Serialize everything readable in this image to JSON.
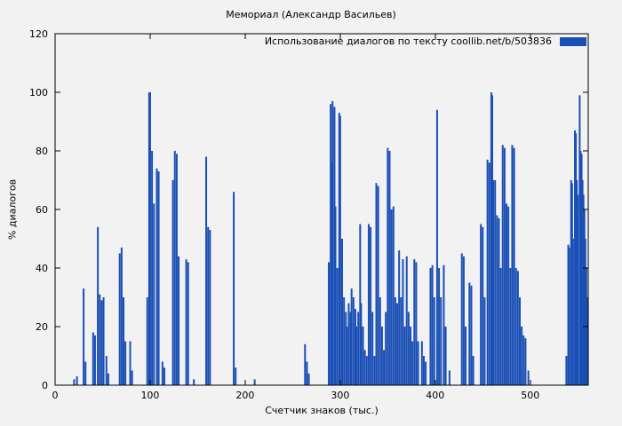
{
  "figure": {
    "background": "#f2f2f2"
  },
  "chart_data": {
    "type": "bar",
    "title": "Мемориал (Александр Васильев)",
    "xlabel": "Счетчик знаков (тыс.)",
    "ylabel": "% диалогов",
    "xlim": [
      0,
      561
    ],
    "ylim": [
      0,
      120
    ],
    "x_ticks": [
      0,
      100,
      200,
      300,
      400,
      500
    ],
    "y_ticks": [
      0,
      20,
      40,
      60,
      80,
      100,
      120
    ],
    "grid": false,
    "legend": {
      "label": "Использование диалогов по тексту  coollib.net/b/503836",
      "position": "top-right"
    },
    "bar_color": "#1a4fb5",
    "points": [
      [
        20,
        2
      ],
      [
        23,
        3
      ],
      [
        30,
        33
      ],
      [
        32,
        8
      ],
      [
        40,
        18
      ],
      [
        42,
        17
      ],
      [
        45,
        54
      ],
      [
        47,
        31
      ],
      [
        49,
        29
      ],
      [
        51,
        30
      ],
      [
        54,
        10
      ],
      [
        56,
        4
      ],
      [
        68,
        45
      ],
      [
        70,
        47
      ],
      [
        72,
        30
      ],
      [
        74,
        15
      ],
      [
        79,
        15
      ],
      [
        81,
        5
      ],
      [
        97,
        30
      ],
      [
        99,
        100
      ],
      [
        100,
        100
      ],
      [
        102,
        80
      ],
      [
        104,
        62
      ],
      [
        107,
        74
      ],
      [
        109,
        73
      ],
      [
        113,
        8
      ],
      [
        115,
        6
      ],
      [
        124,
        70
      ],
      [
        126,
        80
      ],
      [
        128,
        79
      ],
      [
        130,
        44
      ],
      [
        138,
        43
      ],
      [
        140,
        42
      ],
      [
        146,
        2
      ],
      [
        159,
        78
      ],
      [
        161,
        54
      ],
      [
        163,
        53
      ],
      [
        188,
        66
      ],
      [
        190,
        6
      ],
      [
        210,
        2
      ],
      [
        263,
        14
      ],
      [
        265,
        8
      ],
      [
        267,
        4
      ],
      [
        288,
        42
      ],
      [
        290,
        96
      ],
      [
        291,
        76
      ],
      [
        292,
        97
      ],
      [
        294,
        95
      ],
      [
        295,
        61
      ],
      [
        297,
        40
      ],
      [
        299,
        93
      ],
      [
        300,
        92
      ],
      [
        302,
        50
      ],
      [
        304,
        30
      ],
      [
        306,
        25
      ],
      [
        307,
        20
      ],
      [
        309,
        28
      ],
      [
        311,
        25
      ],
      [
        312,
        33
      ],
      [
        314,
        30
      ],
      [
        316,
        26
      ],
      [
        317,
        20
      ],
      [
        319,
        25
      ],
      [
        321,
        55
      ],
      [
        322,
        28
      ],
      [
        324,
        20
      ],
      [
        326,
        12
      ],
      [
        328,
        10
      ],
      [
        330,
        55
      ],
      [
        332,
        54
      ],
      [
        334,
        25
      ],
      [
        336,
        10
      ],
      [
        338,
        69
      ],
      [
        340,
        68
      ],
      [
        342,
        30
      ],
      [
        344,
        20
      ],
      [
        346,
        12
      ],
      [
        348,
        25
      ],
      [
        350,
        81
      ],
      [
        352,
        80
      ],
      [
        354,
        60
      ],
      [
        356,
        61
      ],
      [
        358,
        30
      ],
      [
        360,
        28
      ],
      [
        362,
        46
      ],
      [
        364,
        30
      ],
      [
        366,
        43
      ],
      [
        368,
        20
      ],
      [
        370,
        44
      ],
      [
        372,
        25
      ],
      [
        374,
        20
      ],
      [
        376,
        15
      ],
      [
        378,
        43
      ],
      [
        380,
        42
      ],
      [
        382,
        15
      ],
      [
        386,
        15
      ],
      [
        388,
        10
      ],
      [
        390,
        8
      ],
      [
        395,
        40
      ],
      [
        397,
        41
      ],
      [
        399,
        30
      ],
      [
        402,
        94
      ],
      [
        404,
        40
      ],
      [
        406,
        30
      ],
      [
        409,
        41
      ],
      [
        411,
        20
      ],
      [
        415,
        5
      ],
      [
        428,
        45
      ],
      [
        430,
        44
      ],
      [
        432,
        20
      ],
      [
        436,
        35
      ],
      [
        438,
        34
      ],
      [
        440,
        10
      ],
      [
        448,
        55
      ],
      [
        450,
        54
      ],
      [
        452,
        30
      ],
      [
        455,
        77
      ],
      [
        457,
        76
      ],
      [
        459,
        100
      ],
      [
        460,
        99
      ],
      [
        461,
        70
      ],
      [
        463,
        70
      ],
      [
        465,
        58
      ],
      [
        467,
        57
      ],
      [
        469,
        40
      ],
      [
        471,
        82
      ],
      [
        473,
        81
      ],
      [
        475,
        62
      ],
      [
        477,
        61
      ],
      [
        479,
        40
      ],
      [
        481,
        82
      ],
      [
        483,
        81
      ],
      [
        485,
        40
      ],
      [
        487,
        39
      ],
      [
        489,
        30
      ],
      [
        491,
        20
      ],
      [
        493,
        17
      ],
      [
        495,
        16
      ],
      [
        498,
        5
      ],
      [
        538,
        10
      ],
      [
        540,
        48
      ],
      [
        541,
        47
      ],
      [
        543,
        70
      ],
      [
        544,
        69
      ],
      [
        545,
        50
      ],
      [
        547,
        87
      ],
      [
        548,
        86
      ],
      [
        549,
        70
      ],
      [
        550,
        65
      ],
      [
        552,
        99
      ],
      [
        553,
        80
      ],
      [
        554,
        79
      ],
      [
        555,
        70
      ],
      [
        556,
        65
      ],
      [
        557,
        60
      ],
      [
        558,
        50
      ],
      [
        559,
        40
      ],
      [
        560,
        30
      ]
    ]
  }
}
